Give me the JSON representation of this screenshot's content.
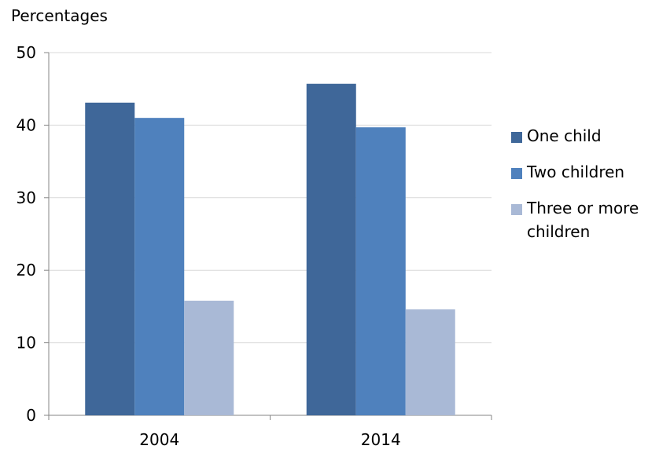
{
  "chart_data": {
    "type": "bar",
    "title": "",
    "xlabel": "",
    "ylabel": "Percentages",
    "ylim": [
      0,
      50
    ],
    "yticks": [
      0,
      10,
      20,
      30,
      40,
      50
    ],
    "grid": true,
    "legend_position": "right",
    "categories": [
      "2004",
      "2014"
    ],
    "series": [
      {
        "name": "One child",
        "color": "#3F6799",
        "values": [
          43.1,
          45.7
        ]
      },
      {
        "name": "Two children",
        "color": "#4F81BD",
        "values": [
          41.0,
          39.7
        ]
      },
      {
        "name": "Three or more children",
        "color": "#A9B9D6",
        "values": [
          15.8,
          14.6
        ]
      }
    ]
  }
}
